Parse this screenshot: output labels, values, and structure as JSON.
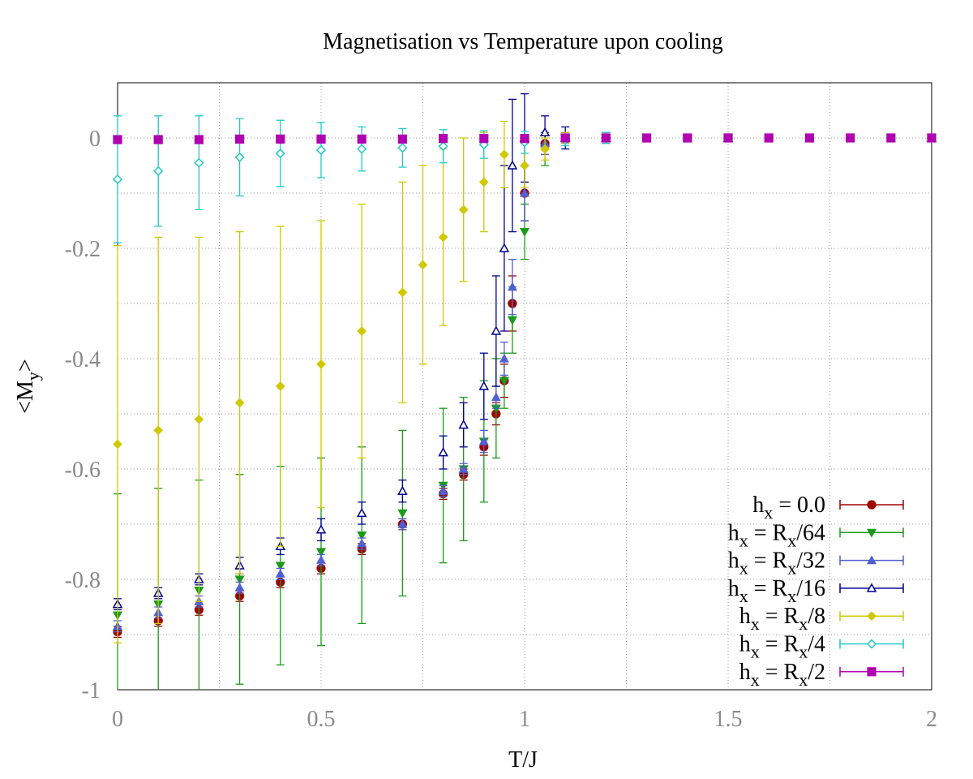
{
  "chart_data": {
    "type": "scatter",
    "title": "Magnetisation vs Temperature upon cooling",
    "xlabel": "T/J",
    "ylabel": "<M_y>",
    "xlim": [
      0,
      2
    ],
    "ylim": [
      -1,
      0.1
    ],
    "xticks": [
      "0",
      "0.5",
      "1",
      "1.5",
      "2"
    ],
    "xtick_values": [
      0,
      0.5,
      1,
      1.5,
      2
    ],
    "yticks": [
      "0",
      "-0.2",
      "-0.4",
      "-0.6",
      "-0.8",
      "-1"
    ],
    "ytick_values": [
      0,
      -0.2,
      -0.4,
      -0.6,
      -0.8,
      -1
    ],
    "grid": true,
    "error_bars": true,
    "legend_position": "bottom-right",
    "series": [
      {
        "name": "h_x = 0.0",
        "legend_main": "h",
        "legend_sub": "x",
        "legend_rest": " = 0.0",
        "color": "#a00000",
        "marker": "circle-filled",
        "x": [
          0,
          0.1,
          0.2,
          0.3,
          0.4,
          0.5,
          0.6,
          0.7,
          0.8,
          0.85,
          0.9,
          0.93,
          0.95,
          0.97,
          1.0,
          1.05,
          1.1,
          1.2,
          1.5,
          2.0
        ],
        "y": [
          -0.895,
          -0.875,
          -0.855,
          -0.83,
          -0.805,
          -0.78,
          -0.745,
          -0.7,
          -0.645,
          -0.61,
          -0.56,
          -0.5,
          -0.44,
          -0.3,
          -0.1,
          -0.01,
          0.0,
          0.0,
          0.0,
          0.0
        ],
        "err": [
          0.01,
          0.01,
          0.01,
          0.01,
          0.01,
          0.01,
          0.01,
          0.01,
          0.01,
          0.01,
          0.015,
          0.02,
          0.03,
          0.05,
          0.05,
          0.02,
          0.01,
          0.01,
          0.005,
          0.005
        ]
      },
      {
        "name": "h_x = R_x/64",
        "legend_main": "h",
        "legend_sub": "x",
        "legend_rest": " = R",
        "legend_sub2": "x",
        "legend_rest2": "/64",
        "color": "#1a9a1a",
        "marker": "triangle-down-filled",
        "x": [
          0,
          0.1,
          0.2,
          0.3,
          0.4,
          0.5,
          0.6,
          0.7,
          0.8,
          0.85,
          0.9,
          0.93,
          0.95,
          0.97,
          1.0,
          1.05,
          1.1,
          1.2,
          1.5,
          2.0
        ],
        "y": [
          -0.865,
          -0.845,
          -0.82,
          -0.8,
          -0.775,
          -0.75,
          -0.72,
          -0.68,
          -0.63,
          -0.6,
          -0.55,
          -0.49,
          -0.44,
          -0.33,
          -0.17,
          -0.02,
          0.0,
          0.0,
          0.0,
          0.0
        ],
        "err": [
          0.22,
          0.21,
          0.2,
          0.19,
          0.18,
          0.17,
          0.16,
          0.15,
          0.14,
          0.13,
          0.11,
          0.09,
          0.05,
          0.06,
          0.05,
          0.03,
          0.01,
          0.01,
          0.005,
          0.005
        ]
      },
      {
        "name": "h_x = R_x/32",
        "legend_main": "h",
        "legend_sub": "x",
        "legend_rest": " = R",
        "legend_sub2": "x",
        "legend_rest2": "/32",
        "color": "#5060d0",
        "marker": "triangle-up-filled",
        "x": [
          0,
          0.1,
          0.2,
          0.3,
          0.4,
          0.5,
          0.6,
          0.7,
          0.8,
          0.85,
          0.9,
          0.93,
          0.95,
          0.97,
          1.0,
          1.05,
          1.1,
          1.2,
          1.5,
          2.0
        ],
        "y": [
          -0.885,
          -0.86,
          -0.84,
          -0.815,
          -0.79,
          -0.765,
          -0.735,
          -0.7,
          -0.64,
          -0.6,
          -0.55,
          -0.47,
          -0.4,
          -0.27,
          -0.1,
          -0.01,
          0.0,
          0.0,
          0.0,
          0.0
        ],
        "err": [
          0.01,
          0.01,
          0.01,
          0.01,
          0.01,
          0.01,
          0.01,
          0.01,
          0.01,
          0.01,
          0.02,
          0.02,
          0.03,
          0.05,
          0.05,
          0.02,
          0.01,
          0.01,
          0.005,
          0.005
        ]
      },
      {
        "name": "h_x = R_x/16",
        "legend_main": "h",
        "legend_sub": "x",
        "legend_rest": " = R",
        "legend_sub2": "x",
        "legend_rest2": "/16",
        "color": "#000090",
        "marker": "triangle-up-open",
        "x": [
          0,
          0.1,
          0.2,
          0.3,
          0.4,
          0.5,
          0.6,
          0.7,
          0.8,
          0.85,
          0.9,
          0.93,
          0.95,
          0.97,
          1.0,
          1.05,
          1.1,
          1.2,
          1.5,
          2.0
        ],
        "y": [
          -0.845,
          -0.825,
          -0.8,
          -0.775,
          -0.74,
          -0.71,
          -0.68,
          -0.64,
          -0.57,
          -0.52,
          -0.45,
          -0.35,
          -0.2,
          -0.05,
          0.0,
          0.01,
          0.0,
          0.0,
          0.0,
          0.0
        ],
        "err": [
          0.01,
          0.01,
          0.01,
          0.015,
          0.015,
          0.02,
          0.02,
          0.02,
          0.03,
          0.04,
          0.06,
          0.1,
          0.15,
          0.12,
          0.08,
          0.03,
          0.02,
          0.01,
          0.005,
          0.005
        ]
      },
      {
        "name": "h_x = R_x/8",
        "legend_main": "h",
        "legend_sub": "x",
        "legend_rest": " = R",
        "legend_sub2": "x",
        "legend_rest2": "/8",
        "color": "#d0c800",
        "marker": "diamond-filled",
        "x": [
          0,
          0.1,
          0.2,
          0.3,
          0.4,
          0.5,
          0.6,
          0.7,
          0.75,
          0.8,
          0.85,
          0.9,
          0.95,
          1.0,
          1.05,
          1.1,
          1.2,
          1.5,
          2.0
        ],
        "y": [
          -0.555,
          -0.53,
          -0.51,
          -0.48,
          -0.45,
          -0.41,
          -0.35,
          -0.28,
          -0.23,
          -0.18,
          -0.13,
          -0.08,
          -0.03,
          -0.05,
          -0.02,
          0.0,
          0.0,
          0.0,
          0.0
        ],
        "err": [
          0.36,
          0.35,
          0.33,
          0.31,
          0.29,
          0.26,
          0.23,
          0.2,
          0.18,
          0.16,
          0.13,
          0.09,
          0.06,
          0.04,
          0.02,
          0.01,
          0.01,
          0.005,
          0.005
        ]
      },
      {
        "name": "h_x = R_x/4",
        "legend_main": "h",
        "legend_sub": "x",
        "legend_rest": " = R",
        "legend_sub2": "x",
        "legend_rest2": "/4",
        "color": "#20c8c8",
        "marker": "diamond-open",
        "x": [
          0,
          0.1,
          0.2,
          0.3,
          0.4,
          0.5,
          0.6,
          0.7,
          0.8,
          0.9,
          1.0,
          1.1,
          1.2,
          1.5,
          2.0
        ],
        "y": [
          -0.075,
          -0.06,
          -0.045,
          -0.035,
          -0.028,
          -0.022,
          -0.02,
          -0.018,
          -0.015,
          -0.012,
          -0.008,
          -0.004,
          0.0,
          0.0,
          0.0
        ],
        "err": [
          0.115,
          0.1,
          0.085,
          0.07,
          0.06,
          0.05,
          0.04,
          0.035,
          0.03,
          0.025,
          0.02,
          0.01,
          0.01,
          0.005,
          0.005
        ]
      },
      {
        "name": "h_x = R_x/2",
        "legend_main": "h",
        "legend_sub": "x",
        "legend_rest": " = R",
        "legend_sub2": "x",
        "legend_rest2": "/2",
        "color": "#b000b0",
        "marker": "square-filled",
        "x": [
          0,
          0.1,
          0.2,
          0.3,
          0.4,
          0.5,
          0.6,
          0.7,
          0.8,
          0.9,
          1.0,
          1.1,
          1.2,
          1.3,
          1.4,
          1.5,
          1.6,
          1.7,
          1.8,
          1.9,
          2.0
        ],
        "y": [
          -0.003,
          -0.003,
          -0.003,
          -0.002,
          -0.002,
          -0.002,
          -0.002,
          -0.002,
          -0.001,
          -0.001,
          -0.001,
          0.0,
          0.0,
          0.0,
          0.0,
          0.0,
          0.0,
          0.0,
          0.0,
          0.0,
          0.0
        ],
        "err": [
          0.005,
          0.005,
          0.005,
          0.005,
          0.005,
          0.005,
          0.005,
          0.005,
          0.005,
          0.005,
          0.005,
          0.004,
          0.004,
          0.003,
          0.003,
          0.003,
          0.003,
          0.003,
          0.003,
          0.003,
          0.003
        ]
      }
    ]
  }
}
